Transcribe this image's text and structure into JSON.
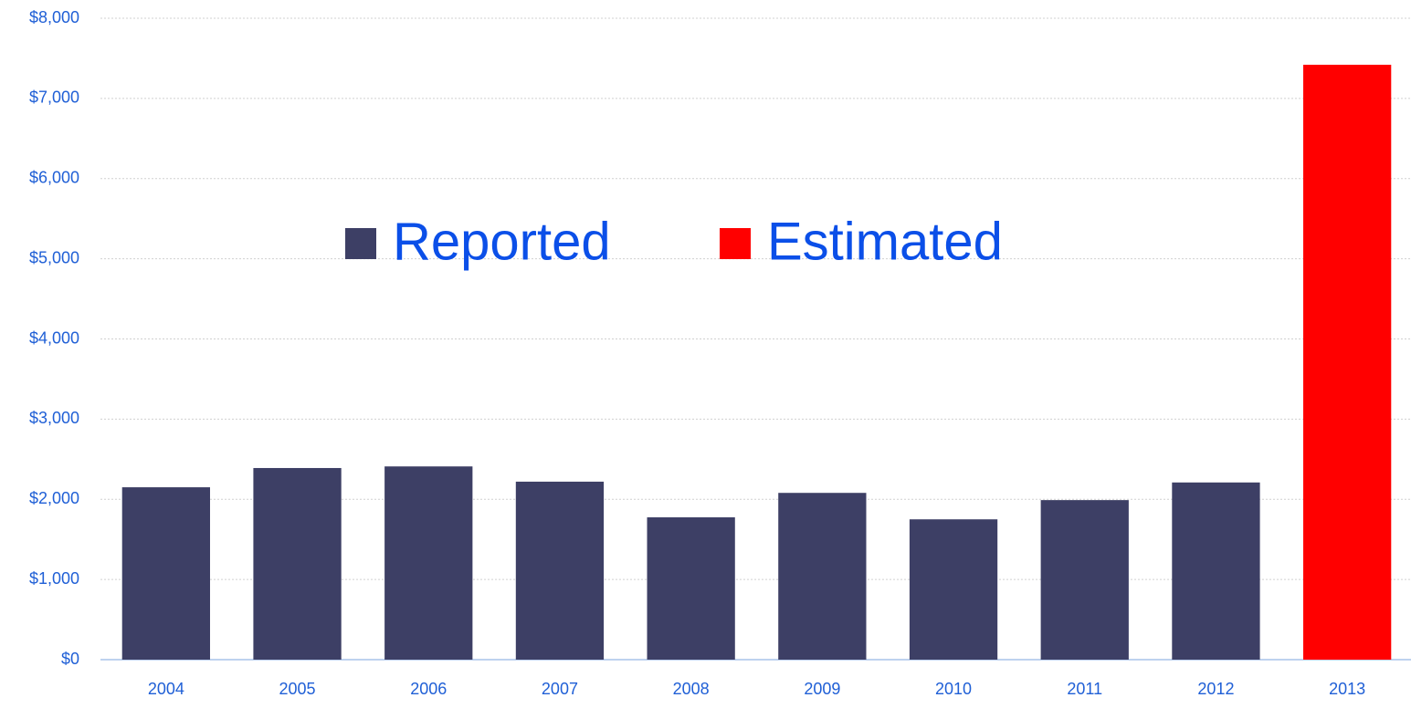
{
  "chart_data": {
    "type": "bar",
    "categories": [
      "2004",
      "2005",
      "2006",
      "2007",
      "2008",
      "2009",
      "2010",
      "2011",
      "2012",
      "2013"
    ],
    "series": [
      {
        "name": "Reported",
        "color": "#3d3f65",
        "values": [
          2150,
          2390,
          2410,
          2220,
          1775,
          2080,
          1750,
          1990,
          2210,
          null
        ]
      },
      {
        "name": "Estimated",
        "color": "#ff0000",
        "values": [
          null,
          null,
          null,
          null,
          null,
          null,
          null,
          null,
          null,
          7420
        ]
      }
    ],
    "ylim": [
      0,
      8000
    ],
    "yticks": [
      {
        "value": 0,
        "label": "$0"
      },
      {
        "value": 1000,
        "label": "$1,000"
      },
      {
        "value": 2000,
        "label": "$2,000"
      },
      {
        "value": 3000,
        "label": "$3,000"
      },
      {
        "value": 4000,
        "label": "$4,000"
      },
      {
        "value": 5000,
        "label": "$5,000"
      },
      {
        "value": 6000,
        "label": "$6,000"
      },
      {
        "value": 7000,
        "label": "$7,000"
      },
      {
        "value": 8000,
        "label": "$8,000"
      }
    ],
    "grid": true,
    "legend": "center"
  }
}
